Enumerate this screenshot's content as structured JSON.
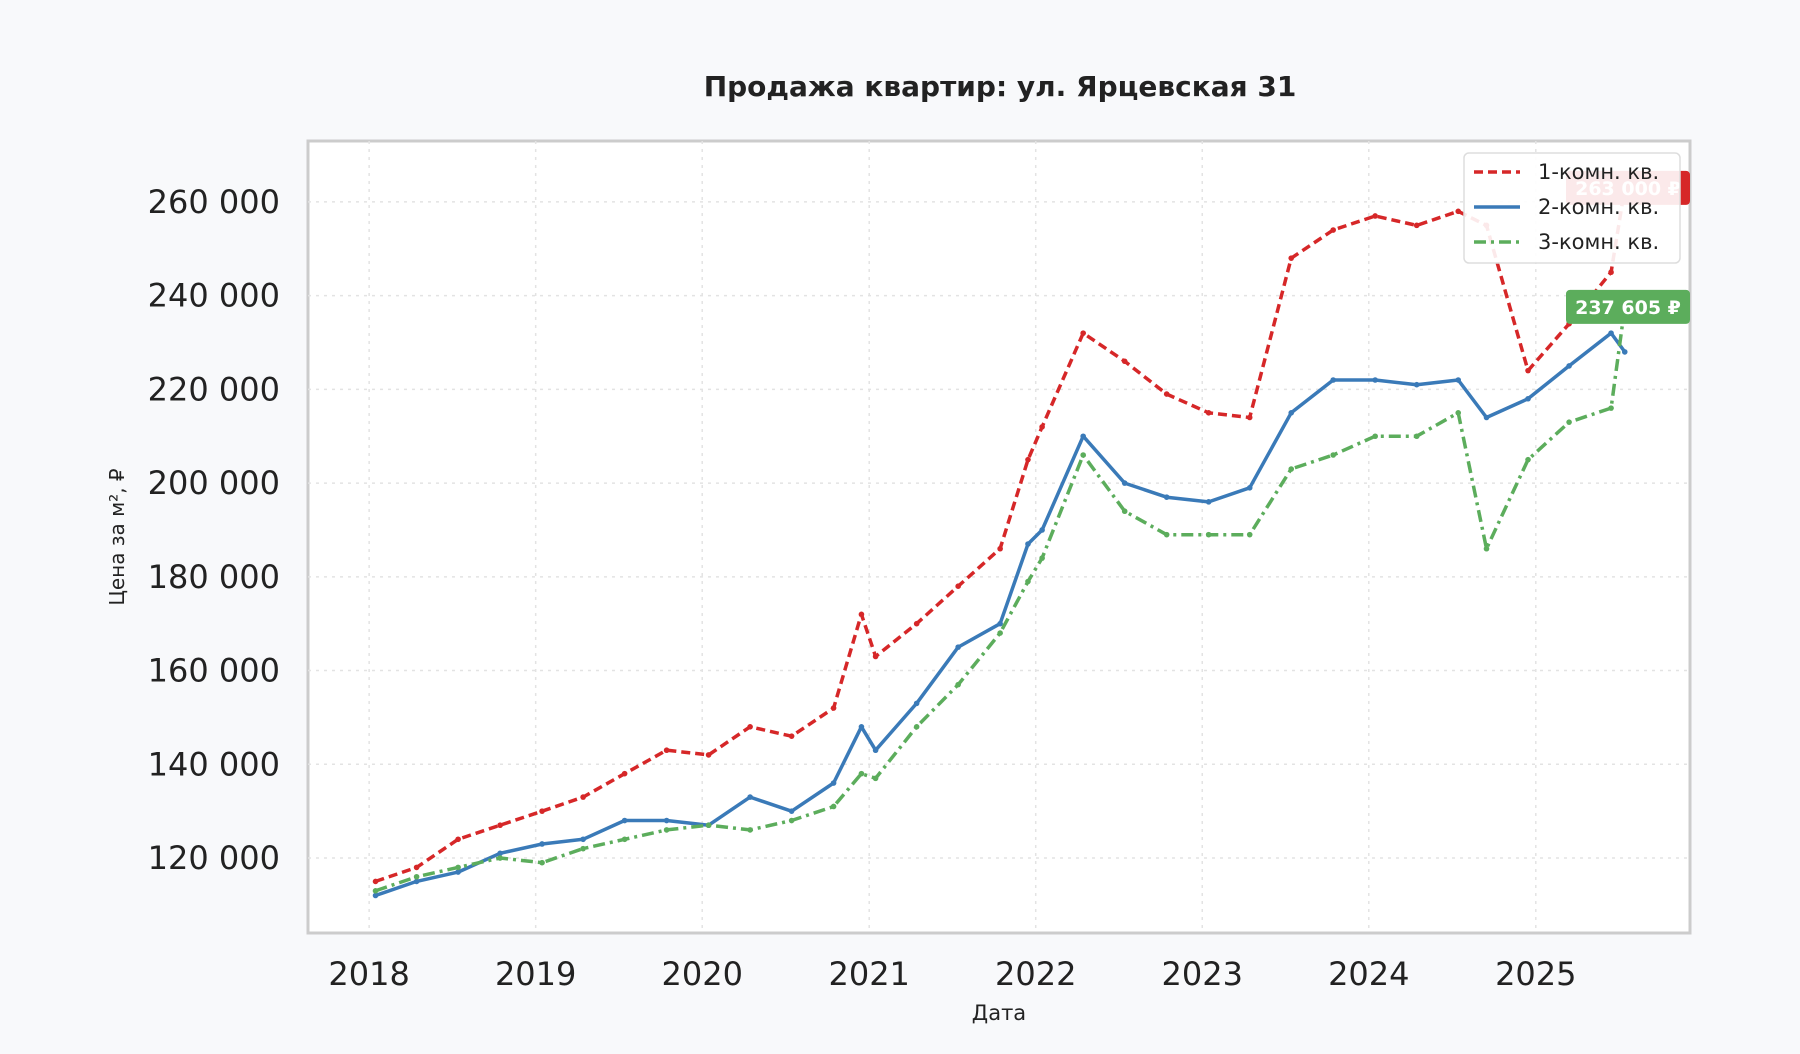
{
  "chart_data": {
    "type": "line",
    "title": "Продажа квартир: ул. Ярцевская 31",
    "xlabel": "Дата",
    "ylabel": "Цена за м², ₽",
    "x_ticks": [
      "2018",
      "2019",
      "2020",
      "2021",
      "2022",
      "2023",
      "2024",
      "2025"
    ],
    "y_ticks": [
      "120 000",
      "140 000",
      "160 000",
      "180 000",
      "200 000",
      "220 000",
      "240 000",
      "260 000"
    ],
    "y_tick_values": [
      120000,
      140000,
      160000,
      180000,
      200000,
      220000,
      240000,
      260000
    ],
    "xlim": [
      "2017-08-20",
      "2025-12-05"
    ],
    "ylim": [
      104000,
      273000
    ],
    "grid": true,
    "legend_position": "top-right",
    "series": [
      {
        "name": "1-комн. кв.",
        "color": "#d62728",
        "style": "dashed",
        "end_label": "263 000 ₽",
        "x": [
          "2018-01",
          "2018-04",
          "2018-07",
          "2018-10",
          "2019-01",
          "2019-04",
          "2019-07",
          "2019-10",
          "2020-01",
          "2020-04",
          "2020-07",
          "2020-10",
          "2020-12",
          "2021-01",
          "2021-04",
          "2021-07",
          "2021-10",
          "2021-12",
          "2022-01",
          "2022-04",
          "2022-07",
          "2022-10",
          "2023-01",
          "2023-04",
          "2023-07",
          "2023-10",
          "2024-01",
          "2024-04",
          "2024-07",
          "2024-09",
          "2024-12",
          "2025-03",
          "2025-06",
          "2025-07"
        ],
        "y": [
          115000,
          118000,
          124000,
          127000,
          130000,
          133000,
          138000,
          143000,
          142000,
          148000,
          146000,
          152000,
          172000,
          163000,
          170000,
          178000,
          186000,
          205000,
          212000,
          232000,
          226000,
          219000,
          215000,
          214000,
          248000,
          254000,
          257000,
          255000,
          258000,
          255000,
          224000,
          234000,
          245000,
          263000
        ]
      },
      {
        "name": "2-комн. кв.",
        "color": "#3a7ab8",
        "style": "solid",
        "end_label": "",
        "x": [
          "2018-01",
          "2018-04",
          "2018-07",
          "2018-10",
          "2019-01",
          "2019-04",
          "2019-07",
          "2019-10",
          "2020-01",
          "2020-04",
          "2020-07",
          "2020-10",
          "2020-12",
          "2021-01",
          "2021-04",
          "2021-07",
          "2021-10",
          "2021-12",
          "2022-01",
          "2022-04",
          "2022-07",
          "2022-10",
          "2023-01",
          "2023-04",
          "2023-07",
          "2023-10",
          "2024-01",
          "2024-04",
          "2024-07",
          "2024-09",
          "2024-12",
          "2025-03",
          "2025-06",
          "2025-07"
        ],
        "y": [
          112000,
          115000,
          117000,
          121000,
          123000,
          124000,
          128000,
          128000,
          127000,
          133000,
          130000,
          136000,
          148000,
          143000,
          153000,
          165000,
          170000,
          187000,
          190000,
          210000,
          200000,
          197000,
          196000,
          199000,
          215000,
          222000,
          222000,
          221000,
          222000,
          214000,
          218000,
          225000,
          232000,
          228000
        ]
      },
      {
        "name": "3-комн. кв.",
        "color": "#5cad5c",
        "style": "dashdot",
        "end_label": "237 605 ₽",
        "x": [
          "2018-01",
          "2018-04",
          "2018-07",
          "2018-10",
          "2019-01",
          "2019-04",
          "2019-07",
          "2019-10",
          "2020-01",
          "2020-04",
          "2020-07",
          "2020-10",
          "2020-12",
          "2021-01",
          "2021-04",
          "2021-07",
          "2021-10",
          "2021-12",
          "2022-01",
          "2022-04",
          "2022-07",
          "2022-10",
          "2023-01",
          "2023-04",
          "2023-07",
          "2023-10",
          "2024-01",
          "2024-04",
          "2024-07",
          "2024-09",
          "2024-12",
          "2025-03",
          "2025-06",
          "2025-07"
        ],
        "y": [
          113000,
          116000,
          118000,
          120000,
          119000,
          122000,
          124000,
          126000,
          127000,
          126000,
          128000,
          131000,
          138000,
          137000,
          148000,
          157000,
          168000,
          179000,
          184000,
          206000,
          194000,
          189000,
          189000,
          189000,
          203000,
          206000,
          210000,
          210000,
          215000,
          186000,
          205000,
          213000,
          216000,
          237605
        ]
      }
    ]
  }
}
